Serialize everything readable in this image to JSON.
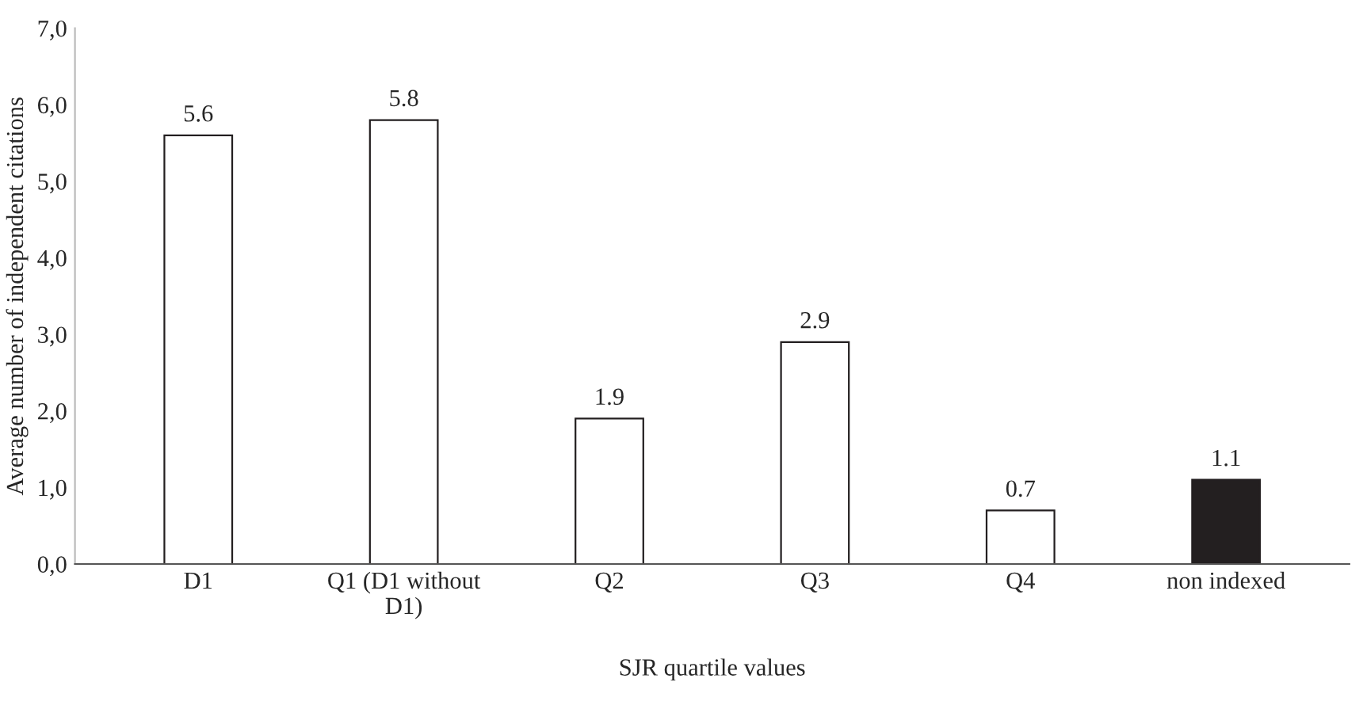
{
  "chart_data": {
    "type": "bar",
    "xlabel": "SJR quartile values",
    "ylabel": "Average number of independent citations",
    "categories": [
      "D1",
      "Q1 (D1 without\nD1)",
      "Q2",
      "Q3",
      "Q4",
      "non indexed"
    ],
    "values": [
      5.6,
      5.8,
      1.9,
      2.9,
      0.7,
      1.1
    ],
    "colors": [
      "#ffffff",
      "#ffffff",
      "#ffffff",
      "#ffffff",
      "#ffffff",
      "#231f20"
    ],
    "ylim": [
      0,
      7
    ],
    "yticks": [
      {
        "value": 0,
        "label": "0,0"
      },
      {
        "value": 1,
        "label": "1,0"
      },
      {
        "value": 2,
        "label": "2,0"
      },
      {
        "value": 3,
        "label": "3,0"
      },
      {
        "value": 4,
        "label": "4,0"
      },
      {
        "value": 5,
        "label": "5,0"
      },
      {
        "value": 6,
        "label": "6,0"
      },
      {
        "value": 7,
        "label": "7,0"
      }
    ],
    "data_labels": true,
    "grid": false,
    "legend": false
  }
}
